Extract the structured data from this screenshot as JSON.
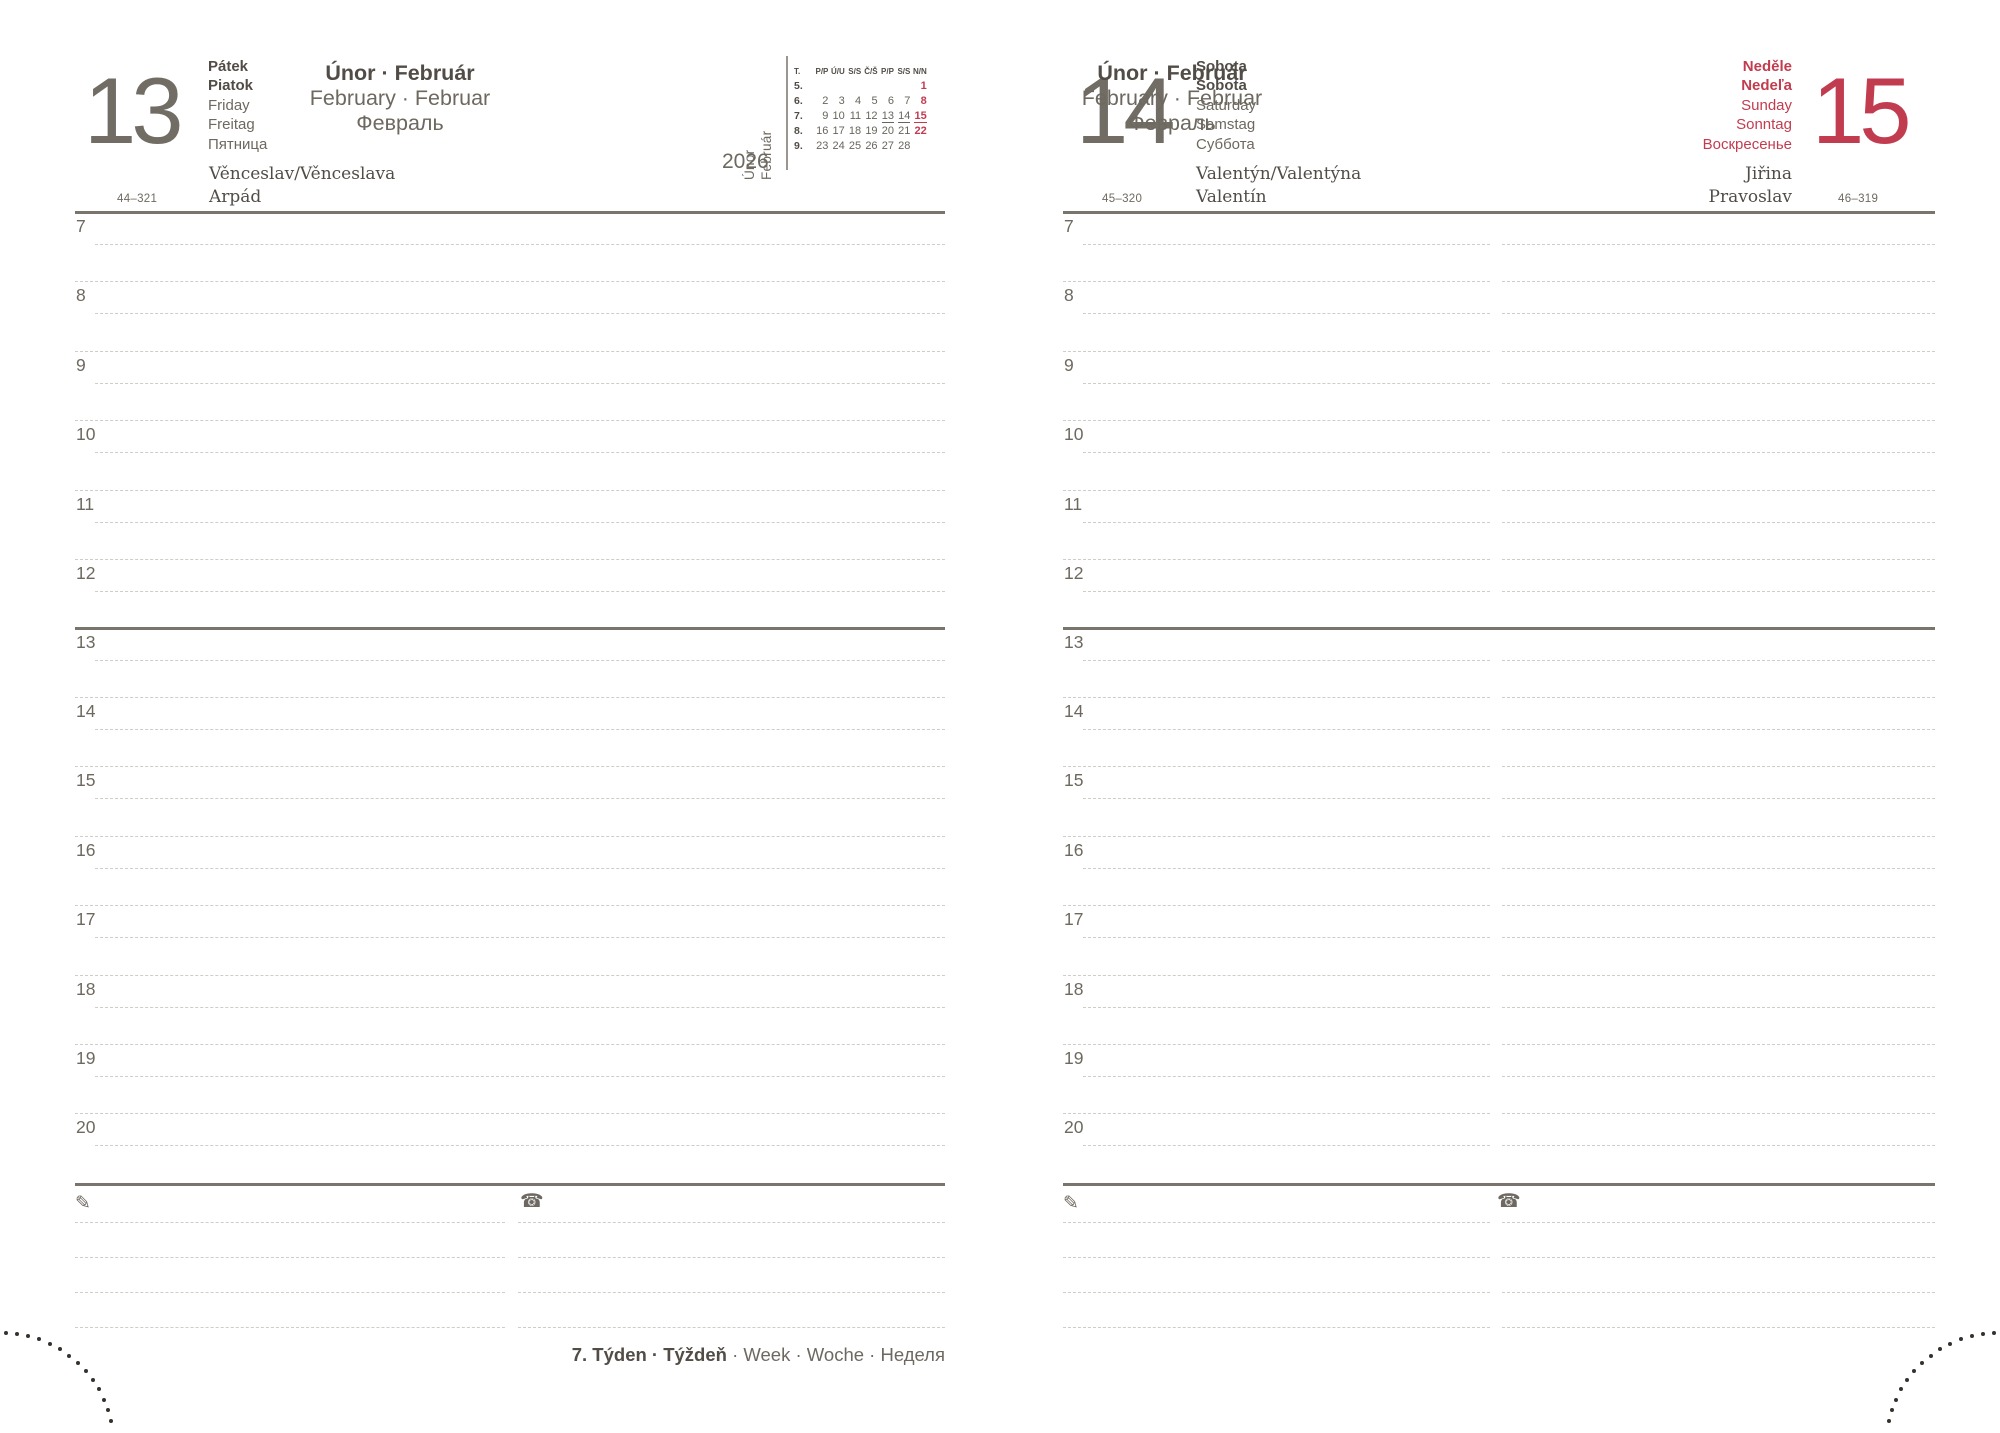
{
  "year": "2026",
  "icons": {
    "pencil": "✎",
    "phone": "☎"
  },
  "colors": {
    "accent_red": "#c23c50",
    "text_dark": "#514c46",
    "text_gray": "#6e6960"
  },
  "left_page": {
    "day_number": "13",
    "day_names": {
      "bold": [
        "Pátek",
        "Piatok"
      ],
      "regular": [
        "Friday",
        "Freitag",
        "Пятница"
      ]
    },
    "week_code": "44–321",
    "name_days": [
      "Věnceslav/Věnceslava",
      "Arpád"
    ],
    "month": {
      "line1": "Únor · Február",
      "line2": "February · Februar",
      "line3": "Февраль"
    },
    "side_month": [
      "Únor",
      "Február"
    ],
    "mini_calendar": {
      "headers": [
        "T.",
        "P/P",
        "Ú/U",
        "S/S",
        "Č/Š",
        "P/P",
        "S/S",
        "N/N"
      ],
      "weeks": [
        {
          "label": "5.",
          "days": [
            "",
            "",
            "",
            "",
            "",
            "",
            "1"
          ]
        },
        {
          "label": "6.",
          "days": [
            "2",
            "3",
            "4",
            "5",
            "6",
            "7",
            "8"
          ]
        },
        {
          "label": "7.",
          "days": [
            "9",
            "10",
            "11",
            "12",
            "13",
            "14",
            "15"
          ]
        },
        {
          "label": "8.",
          "days": [
            "16",
            "17",
            "18",
            "19",
            "20",
            "21",
            "22"
          ]
        },
        {
          "label": "9.",
          "days": [
            "23",
            "24",
            "25",
            "26",
            "27",
            "28",
            ""
          ]
        }
      ],
      "red_days": [
        "1",
        "8",
        "15",
        "22"
      ],
      "underlined_days": [
        "13",
        "14",
        "15"
      ]
    },
    "hours": [
      "7",
      "8",
      "9",
      "10",
      "11",
      "12",
      "13",
      "14",
      "15",
      "16",
      "17",
      "18",
      "19",
      "20"
    ],
    "footer_bold": "7. Týden · Týždeň",
    "footer_regular": "· Week · Woche · Неделя"
  },
  "right_page": {
    "day_number": "14",
    "day_names": {
      "bold": [
        "Sobota",
        "Sobota"
      ],
      "regular": [
        "Saturday",
        "Samstag",
        "Суббота"
      ]
    },
    "week_code": "45–320",
    "name_days": [
      "Valentýn/Valentýna",
      "Valentín"
    ],
    "month": {
      "line1": "Únor · Február",
      "line2": "February · Februar",
      "line3": "Февраль"
    },
    "hours": [
      "7",
      "8",
      "9",
      "10",
      "11",
      "12",
      "13",
      "14",
      "15",
      "16",
      "17",
      "18",
      "19",
      "20"
    ],
    "second_day": {
      "day_number": "15",
      "day_names": {
        "bold": [
          "Neděle",
          "Nedeľa"
        ],
        "regular": [
          "Sunday",
          "Sonntag",
          "Воскресенье"
        ]
      },
      "week_code": "46–319",
      "name_days": [
        "Jiřina",
        "Pravoslav"
      ]
    }
  }
}
